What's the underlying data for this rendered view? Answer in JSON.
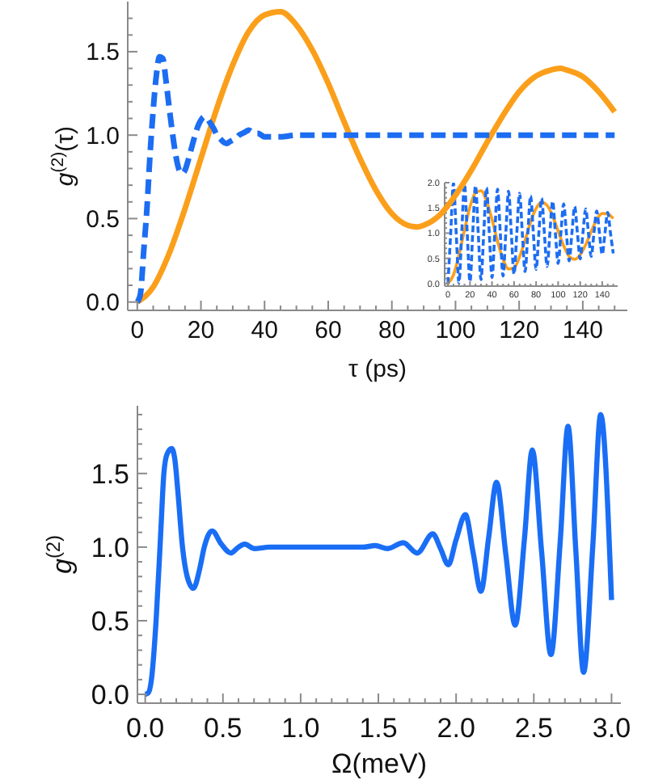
{
  "chart_data": [
    {
      "type": "line",
      "xlabel": "τ (ps)",
      "ylabel": "g$^{(2)}$(τ)",
      "xlim": [
        -3,
        154
      ],
      "ylim": [
        -0.05,
        1.8
      ],
      "xticks": [
        0,
        {
          "value": 5,
          "label": null
        },
        {
          "value": 10,
          "label": null
        },
        {
          "value": 15,
          "label": null
        },
        20,
        {
          "value": 25,
          "label": null
        },
        {
          "value": 30,
          "label": null
        },
        {
          "value": 35,
          "label": null
        },
        40,
        {
          "value": 45,
          "label": null
        },
        {
          "value": 50,
          "label": null
        },
        {
          "value": 55,
          "label": null
        },
        60,
        {
          "value": 65,
          "label": null
        },
        {
          "value": 70,
          "label": null
        },
        {
          "value": 75,
          "label": null
        },
        80,
        {
          "value": 85,
          "label": null
        },
        {
          "value": 90,
          "label": null
        },
        {
          "value": 95,
          "label": null
        },
        100,
        {
          "value": 105,
          "label": null
        },
        {
          "value": 110,
          "label": null
        },
        {
          "value": 115,
          "label": null
        },
        120,
        {
          "value": 125,
          "label": null
        },
        {
          "value": 130,
          "label": null
        },
        {
          "value": 135,
          "label": null
        },
        140,
        {
          "value": 145,
          "label": null
        },
        {
          "value": 150,
          "label": null
        }
      ],
      "yticks": [
        {
          "value": 0,
          "label": "0.0"
        },
        {
          "value": 0.1,
          "label": null
        },
        {
          "value": 0.2,
          "label": null
        },
        {
          "value": 0.3,
          "label": null
        },
        {
          "value": 0.4,
          "label": null
        },
        {
          "value": 0.5,
          "label": "0.5"
        },
        {
          "value": 0.6,
          "label": null
        },
        {
          "value": 0.7,
          "label": null
        },
        {
          "value": 0.8,
          "label": null
        },
        {
          "value": 0.9,
          "label": null
        },
        {
          "value": 1,
          "label": "1.0"
        },
        {
          "value": 1.1,
          "label": null
        },
        {
          "value": 1.2,
          "label": null
        },
        {
          "value": 1.3,
          "label": null
        },
        {
          "value": 1.4,
          "label": null
        },
        {
          "value": 1.5,
          "label": "1.5"
        },
        {
          "value": 1.6,
          "label": null
        },
        {
          "value": 1.7,
          "label": null
        }
      ],
      "series": [
        {
          "color": "#fb9f1b",
          "line_style": "solid",
          "x": [
            0,
            5,
            10,
            15,
            20,
            25,
            30,
            35,
            40,
            45,
            50,
            55,
            60,
            65,
            70,
            75,
            80,
            85,
            88,
            90,
            95,
            100,
            105,
            110,
            115,
            120,
            125,
            130,
            133,
            135,
            140,
            145,
            150
          ],
          "values": [
            0,
            0.09,
            0.29,
            0.56,
            0.86,
            1.16,
            1.42,
            1.62,
            1.72,
            1.74,
            1.66,
            1.51,
            1.31,
            1.08,
            0.86,
            0.67,
            0.53,
            0.46,
            0.45,
            0.46,
            0.52,
            0.64,
            0.79,
            0.96,
            1.12,
            1.26,
            1.35,
            1.39,
            1.4,
            1.39,
            1.35,
            1.26,
            1.14
          ]
        },
        {
          "color": "#1c6df2",
          "line_style": "dashed",
          "x": [
            0,
            1,
            2,
            3,
            4,
            5,
            6,
            7,
            8,
            9,
            10,
            11,
            12,
            13,
            14,
            15,
            16,
            17,
            18,
            19,
            20,
            21,
            22,
            23,
            24,
            25,
            26,
            27,
            28,
            29,
            30,
            31,
            32,
            33,
            34,
            35,
            36,
            37,
            38,
            39,
            40,
            42,
            45,
            50,
            60,
            70,
            80,
            90,
            100,
            110,
            120,
            130,
            140,
            150
          ],
          "values": [
            0,
            0.05,
            0.3,
            0.55,
            0.88,
            1.15,
            1.36,
            1.47,
            1.46,
            1.33,
            1.17,
            1.02,
            0.89,
            0.8,
            0.77,
            0.79,
            0.85,
            0.92,
            0.99,
            1.05,
            1.09,
            1.11,
            1.1,
            1.07,
            1.04,
            1,
            0.98,
            0.96,
            0.95,
            0.96,
            0.97,
            0.98,
            1,
            1.01,
            1.02,
            1.03,
            1.02,
            1.01,
            1.01,
            1,
            0.99,
            0.99,
            0.99,
            1,
            1,
            1,
            1,
            1,
            1,
            1,
            1,
            1,
            1,
            1
          ]
        }
      ]
    },
    {
      "type": "line",
      "xlim": [
        -3,
        154
      ],
      "ylim": [
        -0.05,
        2
      ],
      "xticks": [
        0,
        {
          "value": 5,
          "label": null
        },
        {
          "value": 10,
          "label": null
        },
        {
          "value": 15,
          "label": null
        },
        20,
        {
          "value": 25,
          "label": null
        },
        {
          "value": 30,
          "label": null
        },
        {
          "value": 35,
          "label": null
        },
        40,
        {
          "value": 45,
          "label": null
        },
        {
          "value": 50,
          "label": null
        },
        {
          "value": 55,
          "label": null
        },
        60,
        {
          "value": 65,
          "label": null
        },
        {
          "value": 70,
          "label": null
        },
        {
          "value": 75,
          "label": null
        },
        80,
        {
          "value": 85,
          "label": null
        },
        {
          "value": 90,
          "label": null
        },
        {
          "value": 95,
          "label": null
        },
        100,
        {
          "value": 105,
          "label": null
        },
        {
          "value": 110,
          "label": null
        },
        {
          "value": 115,
          "label": null
        },
        120,
        {
          "value": 125,
          "label": null
        },
        {
          "value": 130,
          "label": null
        },
        {
          "value": 135,
          "label": null
        },
        140,
        {
          "value": 145,
          "label": null
        },
        {
          "value": 150,
          "label": null
        }
      ],
      "yticks": [
        {
          "value": 0,
          "label": "0.0"
        },
        {
          "value": 0.1,
          "label": null
        },
        {
          "value": 0.2,
          "label": null
        },
        {
          "value": 0.3,
          "label": null
        },
        {
          "value": 0.4,
          "label": null
        },
        {
          "value": 0.5,
          "label": "0.5"
        },
        {
          "value": 0.6,
          "label": null
        },
        {
          "value": 0.7,
          "label": null
        },
        {
          "value": 0.8,
          "label": null
        },
        {
          "value": 0.9,
          "label": null
        },
        {
          "value": 1,
          "label": "1.0"
        },
        {
          "value": 1.1,
          "label": null
        },
        {
          "value": 1.2,
          "label": null
        },
        {
          "value": 1.3,
          "label": null
        },
        {
          "value": 1.4,
          "label": null
        },
        {
          "value": 1.5,
          "label": "1.5"
        },
        {
          "value": 1.6,
          "label": null
        },
        {
          "value": 1.7,
          "label": null
        },
        {
          "value": 1.8,
          "label": null
        },
        {
          "value": 1.9,
          "label": null
        },
        {
          "value": 2,
          "label": "2.0"
        }
      ],
      "series": [
        {
          "color": "#fb9f1b",
          "line_style": "solid",
          "x": [
            0,
            5,
            10,
            15,
            20,
            25,
            30,
            35,
            40,
            45,
            50,
            55,
            60,
            65,
            70,
            75,
            80,
            85,
            90,
            95,
            100,
            105,
            110,
            115,
            120,
            125,
            130,
            135,
            140,
            145,
            150
          ],
          "values": [
            0,
            0.17,
            0.57,
            1.06,
            1.52,
            1.8,
            1.84,
            1.64,
            1.27,
            0.84,
            0.48,
            0.29,
            0.31,
            0.53,
            0.86,
            1.22,
            1.49,
            1.61,
            1.55,
            1.34,
            1.04,
            0.75,
            0.54,
            0.48,
            0.57,
            0.77,
            1.03,
            1.27,
            1.39,
            1.38,
            1.29
          ]
        },
        {
          "color": "#1c6df2",
          "line_style": "dashed",
          "x": [
            0,
            2.5,
            5,
            7.5,
            10,
            12.5,
            15,
            17.5,
            20,
            22.5,
            25,
            27.5,
            30,
            32.5,
            35,
            37.5,
            40,
            42.5,
            45,
            47.5,
            50,
            52.5,
            55,
            57.5,
            60,
            62.5,
            65,
            67.5,
            70,
            72.5,
            75,
            77.5,
            80,
            82.5,
            85,
            87.5,
            90,
            92.5,
            95,
            97.5,
            100,
            102.5,
            105,
            107.5,
            110,
            112.5,
            115,
            117.5,
            120,
            122.5,
            125,
            127.5,
            130,
            132.5,
            135,
            137.5,
            140,
            142.5,
            145,
            147.5,
            150
          ],
          "values": [
            0,
            1,
            1.99,
            1,
            0.02,
            1,
            1.97,
            1,
            0.04,
            1,
            1.94,
            1,
            0.08,
            1,
            1.9,
            1,
            0.12,
            1,
            1.87,
            1,
            0.15,
            1,
            1.83,
            1,
            0.19,
            1,
            1.79,
            1,
            0.24,
            1,
            1.74,
            1,
            0.28,
            1,
            1.69,
            1,
            0.34,
            1,
            1.63,
            1,
            0.4,
            1,
            1.58,
            1,
            0.45,
            1,
            1.53,
            1,
            0.49,
            1,
            1.48,
            1,
            0.54,
            1,
            1.44,
            1,
            0.58,
            1,
            1.41,
            1,
            0.6
          ]
        }
      ]
    },
    {
      "type": "line",
      "xlabel": "Ω(meV)",
      "ylabel": "g$^{(2)}$",
      "xlim": [
        -0.05,
        3.06
      ],
      "ylim": [
        -0.06,
        1.96
      ],
      "xticks": [
        {
          "value": 0,
          "label": "0.0"
        },
        {
          "value": 0.1,
          "label": null
        },
        {
          "value": 0.2,
          "label": null
        },
        {
          "value": 0.3,
          "label": null
        },
        {
          "value": 0.4,
          "label": null
        },
        0.5,
        {
          "value": 0.6,
          "label": null
        },
        {
          "value": 0.7,
          "label": null
        },
        {
          "value": 0.8,
          "label": null
        },
        {
          "value": 0.9,
          "label": null
        },
        {
          "value": 1,
          "label": "1.0"
        },
        {
          "value": 1.1,
          "label": null
        },
        {
          "value": 1.2,
          "label": null
        },
        {
          "value": 1.3,
          "label": null
        },
        {
          "value": 1.4,
          "label": null
        },
        1.5,
        {
          "value": 1.6,
          "label": null
        },
        {
          "value": 1.7,
          "label": null
        },
        {
          "value": 1.8,
          "label": null
        },
        {
          "value": 1.9,
          "label": null
        },
        {
          "value": 2,
          "label": "2.0"
        },
        {
          "value": 2.1,
          "label": null
        },
        {
          "value": 2.2,
          "label": null
        },
        {
          "value": 2.3,
          "label": null
        },
        {
          "value": 2.4,
          "label": null
        },
        2.5,
        {
          "value": 2.6,
          "label": null
        },
        {
          "value": 2.7,
          "label": null
        },
        {
          "value": 2.8,
          "label": null
        },
        {
          "value": 2.9,
          "label": null
        },
        {
          "value": 3,
          "label": "3.0"
        }
      ],
      "yticks": [
        {
          "value": 0,
          "label": "0.0"
        },
        {
          "value": 0.1,
          "label": null
        },
        {
          "value": 0.2,
          "label": null
        },
        {
          "value": 0.3,
          "label": null
        },
        {
          "value": 0.4,
          "label": null
        },
        {
          "value": 0.5,
          "label": "0.5"
        },
        {
          "value": 0.6,
          "label": null
        },
        {
          "value": 0.7,
          "label": null
        },
        {
          "value": 0.8,
          "label": null
        },
        {
          "value": 0.9,
          "label": null
        },
        {
          "value": 1,
          "label": "1.0"
        },
        {
          "value": 1.1,
          "label": null
        },
        {
          "value": 1.2,
          "label": null
        },
        {
          "value": 1.3,
          "label": null
        },
        {
          "value": 1.4,
          "label": null
        },
        {
          "value": 1.5,
          "label": "1.5"
        },
        {
          "value": 1.6,
          "label": null
        },
        {
          "value": 1.7,
          "label": null
        },
        {
          "value": 1.8,
          "label": null
        },
        {
          "value": 1.9,
          "label": null
        }
      ],
      "series": [
        {
          "color": "#1a6ef5",
          "line_style": "solid",
          "x": [
            0,
            0.02,
            0.04,
            0.07,
            0.1,
            0.12,
            0.14,
            0.17,
            0.19,
            0.21,
            0.24,
            0.27,
            0.31,
            0.35,
            0.38,
            0.43,
            0.49,
            0.55,
            0.6,
            0.64,
            0.7,
            0.8,
            0.9,
            1,
            1.1,
            1.2,
            1.3,
            1.4,
            1.48,
            1.56,
            1.66,
            1.75,
            1.85,
            1.9,
            1.95,
            2,
            2.06,
            2.11,
            2.16,
            2.21,
            2.26,
            2.32,
            2.38,
            2.44,
            2.49,
            2.55,
            2.61,
            2.67,
            2.72,
            2.77,
            2.82,
            2.88,
            2.93,
            3
          ],
          "values": [
            0,
            0.01,
            0.1,
            0.5,
            1.1,
            1.5,
            1.63,
            1.67,
            1.6,
            1.38,
            1,
            0.8,
            0.72,
            0.85,
            1,
            1.11,
            1.02,
            0.96,
            1,
            1.02,
            0.99,
            1,
            1,
            1,
            1,
            1,
            1,
            1,
            1.01,
            0.99,
            1.03,
            0.96,
            1.09,
            0.99,
            0.88,
            1.05,
            1.22,
            0.96,
            0.7,
            1.07,
            1.44,
            0.95,
            0.47,
            1.06,
            1.66,
            0.97,
            0.27,
            1.04,
            1.82,
            0.98,
            0.15,
            1.02,
            1.9,
            0.64
          ]
        }
      ]
    }
  ]
}
